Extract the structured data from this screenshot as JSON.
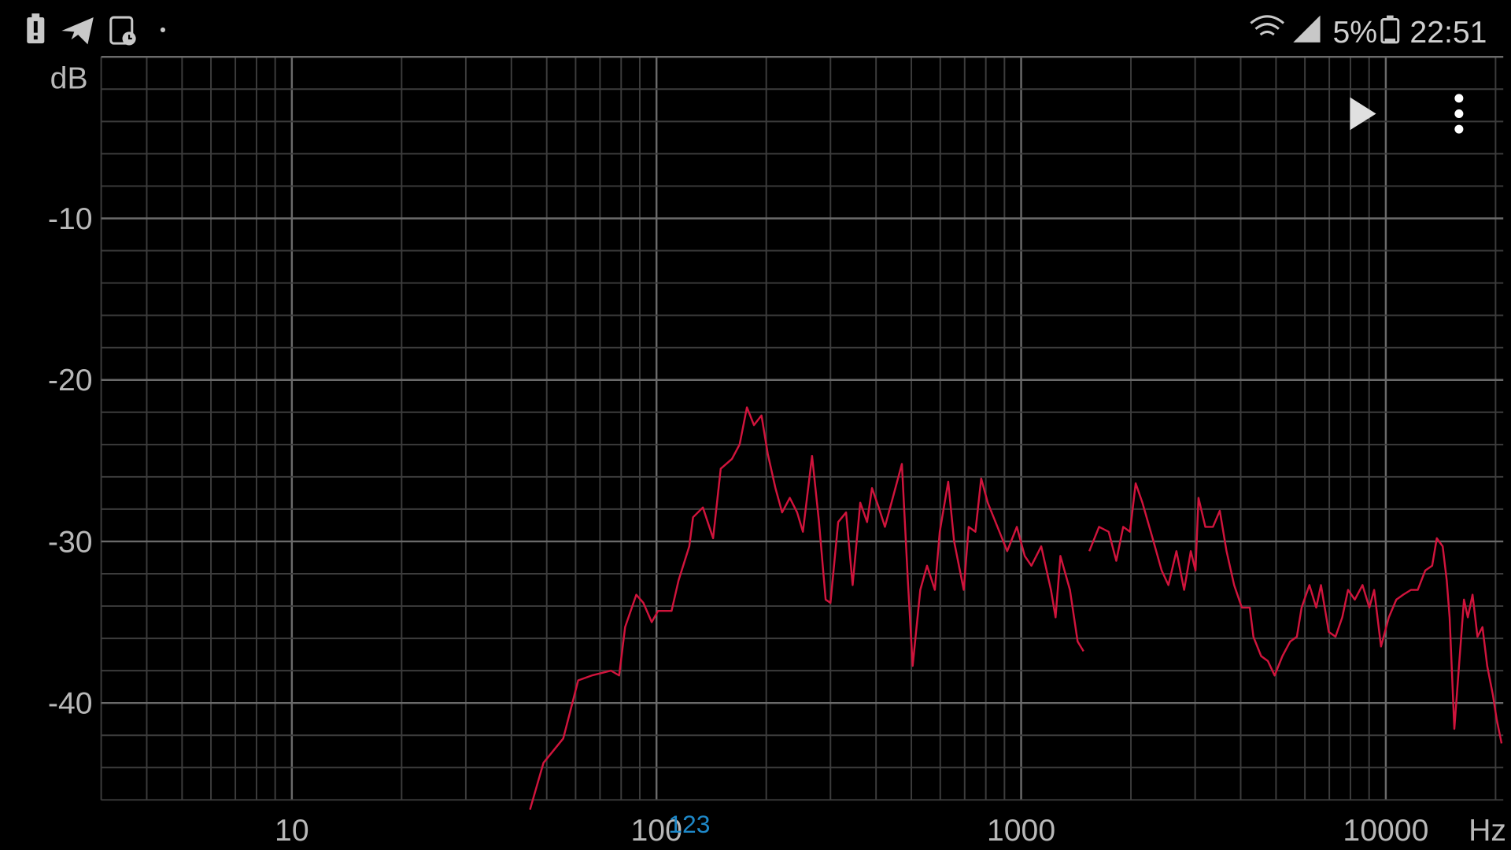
{
  "status_bar": {
    "left_icons": [
      "battery-alert-icon",
      "telegram-icon",
      "screen-record-icon",
      "dot-icon"
    ],
    "right_icons": [
      "wifi-icon",
      "signal-icon",
      "battery-icon"
    ],
    "battery": "5%",
    "time": "22:51"
  },
  "toolbar": {
    "play_icon": "play-icon",
    "menu_icon": "more-vert-icon"
  },
  "colors": {
    "background": "#000000",
    "grid_major": "#6a6a6a",
    "grid_minor": "#3c3c3c",
    "curve": "#d0143c",
    "cursor_label": "#1e88c8",
    "text": "#b8b8b8"
  },
  "chart_data": {
    "type": "line",
    "xlabel": "Hz",
    "ylabel": "dB",
    "x_scale": "log",
    "xlim": [
      3,
      21000
    ],
    "ylim": [
      -46,
      0
    ],
    "grid": true,
    "x_ticks": [
      {
        "value": 10,
        "label": "10"
      },
      {
        "value": 100,
        "label": "100"
      },
      {
        "value": 1000,
        "label": "1000"
      },
      {
        "value": 10000,
        "label": "10000"
      }
    ],
    "y_ticks": [
      {
        "value": -10,
        "label": "-10"
      },
      {
        "value": -20,
        "label": "-20"
      },
      {
        "value": -30,
        "label": "-30"
      },
      {
        "value": -40,
        "label": "-40"
      }
    ],
    "cursor": {
      "value": 123,
      "label": "123"
    },
    "series": [
      {
        "segments": [
          [
            [
              45,
              -46.6
            ],
            [
              49,
              -43.7
            ],
            [
              55.5,
              -42.2
            ],
            [
              61,
              -38.6
            ],
            [
              66.5,
              -38.3
            ],
            [
              75,
              -38.0
            ],
            [
              79,
              -38.3
            ],
            [
              82,
              -35.3
            ],
            [
              88,
              -33.3
            ],
            [
              92,
              -33.8
            ],
            [
              97,
              -35.0
            ],
            [
              101,
              -34.3
            ],
            [
              110,
              -34.3
            ],
            [
              115,
              -32.4
            ],
            [
              123,
              -30.3
            ],
            [
              126,
              -28.5
            ],
            [
              134,
              -27.9
            ],
            [
              143,
              -29.8
            ],
            [
              150,
              -25.5
            ],
            [
              161,
              -24.9
            ],
            [
              169,
              -24.0
            ],
            [
              177,
              -21.7
            ],
            [
              185,
              -22.8
            ],
            [
              194,
              -22.2
            ],
            [
              202,
              -24.6
            ],
            [
              212,
              -26.7
            ],
            [
              221,
              -28.2
            ],
            [
              232,
              -27.3
            ],
            [
              243,
              -28.2
            ],
            [
              252,
              -29.4
            ],
            [
              267,
              -24.7
            ],
            [
              279,
              -28.8
            ],
            [
              291,
              -33.6
            ],
            [
              300,
              -33.8
            ],
            [
              315,
              -28.8
            ],
            [
              331,
              -28.2
            ],
            [
              345,
              -32.7
            ],
            [
              362,
              -27.6
            ],
            [
              378,
              -28.8
            ],
            [
              390,
              -26.7
            ],
            [
              407,
              -27.9
            ],
            [
              423,
              -29.1
            ],
            [
              441,
              -27.6
            ],
            [
              471,
              -25.2
            ],
            [
              489,
              -32.4
            ],
            [
              504,
              -37.7
            ],
            [
              529,
              -33.0
            ],
            [
              552,
              -31.5
            ],
            [
              580,
              -33.0
            ],
            [
              598,
              -29.4
            ],
            [
              631,
              -26.3
            ],
            [
              655,
              -30.0
            ],
            [
              696,
              -33.0
            ],
            [
              718,
              -29.1
            ],
            [
              749,
              -29.4
            ],
            [
              777,
              -26.1
            ],
            [
              810,
              -27.6
            ],
            [
              861,
              -29.1
            ],
            [
              916,
              -30.6
            ],
            [
              973,
              -29.1
            ],
            [
              1023,
              -30.9
            ],
            [
              1067,
              -31.5
            ],
            [
              1135,
              -30.3
            ],
            [
              1207,
              -33.0
            ],
            [
              1243,
              -34.7
            ],
            [
              1281,
              -30.9
            ],
            [
              1361,
              -33.0
            ],
            [
              1429,
              -36.2
            ],
            [
              1483,
              -36.8
            ]
          ],
          [
            [
              1538,
              -30.6
            ],
            [
              1635,
              -29.1
            ],
            [
              1738,
              -29.4
            ],
            [
              1824,
              -31.2
            ],
            [
              1905,
              -29.1
            ],
            [
              1988,
              -29.4
            ],
            [
              2061,
              -26.4
            ],
            [
              2151,
              -27.6
            ],
            [
              2287,
              -29.7
            ],
            [
              2429,
              -31.8
            ],
            [
              2535,
              -32.7
            ],
            [
              2665,
              -30.6
            ],
            [
              2798,
              -33.0
            ],
            [
              2919,
              -30.6
            ],
            [
              3008,
              -31.8
            ],
            [
              3064,
              -27.3
            ],
            [
              3199,
              -29.1
            ],
            [
              3357,
              -29.1
            ],
            [
              3505,
              -28.1
            ],
            [
              3657,
              -30.6
            ],
            [
              3838,
              -32.7
            ],
            [
              4030,
              -34.1
            ],
            [
              4236,
              -34.1
            ],
            [
              4336,
              -35.9
            ],
            [
              4551,
              -37.1
            ],
            [
              4750,
              -37.4
            ],
            [
              4957,
              -38.3
            ],
            [
              5207,
              -37.1
            ],
            [
              5466,
              -36.2
            ],
            [
              5705,
              -35.9
            ],
            [
              5878,
              -34.1
            ],
            [
              6175,
              -32.7
            ],
            [
              6445,
              -34.1
            ],
            [
              6642,
              -32.7
            ],
            [
              6977,
              -35.6
            ],
            [
              7278,
              -35.9
            ],
            [
              7597,
              -34.7
            ],
            [
              7880,
              -33.0
            ],
            [
              8222,
              -33.6
            ],
            [
              8630,
              -32.7
            ],
            [
              9012,
              -34.1
            ],
            [
              9290,
              -33.0
            ],
            [
              9700,
              -36.5
            ],
            [
              10190,
              -34.7
            ],
            [
              10690,
              -33.6
            ],
            [
              11160,
              -33.3
            ],
            [
              11720,
              -33.0
            ],
            [
              12230,
              -33.0
            ],
            [
              12830,
              -31.8
            ],
            [
              13400,
              -31.5
            ],
            [
              13800,
              -29.8
            ],
            [
              14320,
              -30.3
            ],
            [
              14690,
              -32.4
            ],
            [
              14960,
              -34.7
            ],
            [
              15420,
              -41.6
            ],
            [
              15810,
              -38.3
            ],
            [
              16380,
              -33.6
            ],
            [
              16790,
              -34.7
            ],
            [
              17300,
              -33.3
            ],
            [
              17840,
              -35.9
            ],
            [
              18410,
              -35.3
            ],
            [
              18970,
              -37.7
            ],
            [
              19670,
              -39.5
            ],
            [
              20140,
              -41.0
            ],
            [
              20770,
              -42.5
            ]
          ]
        ]
      }
    ]
  }
}
